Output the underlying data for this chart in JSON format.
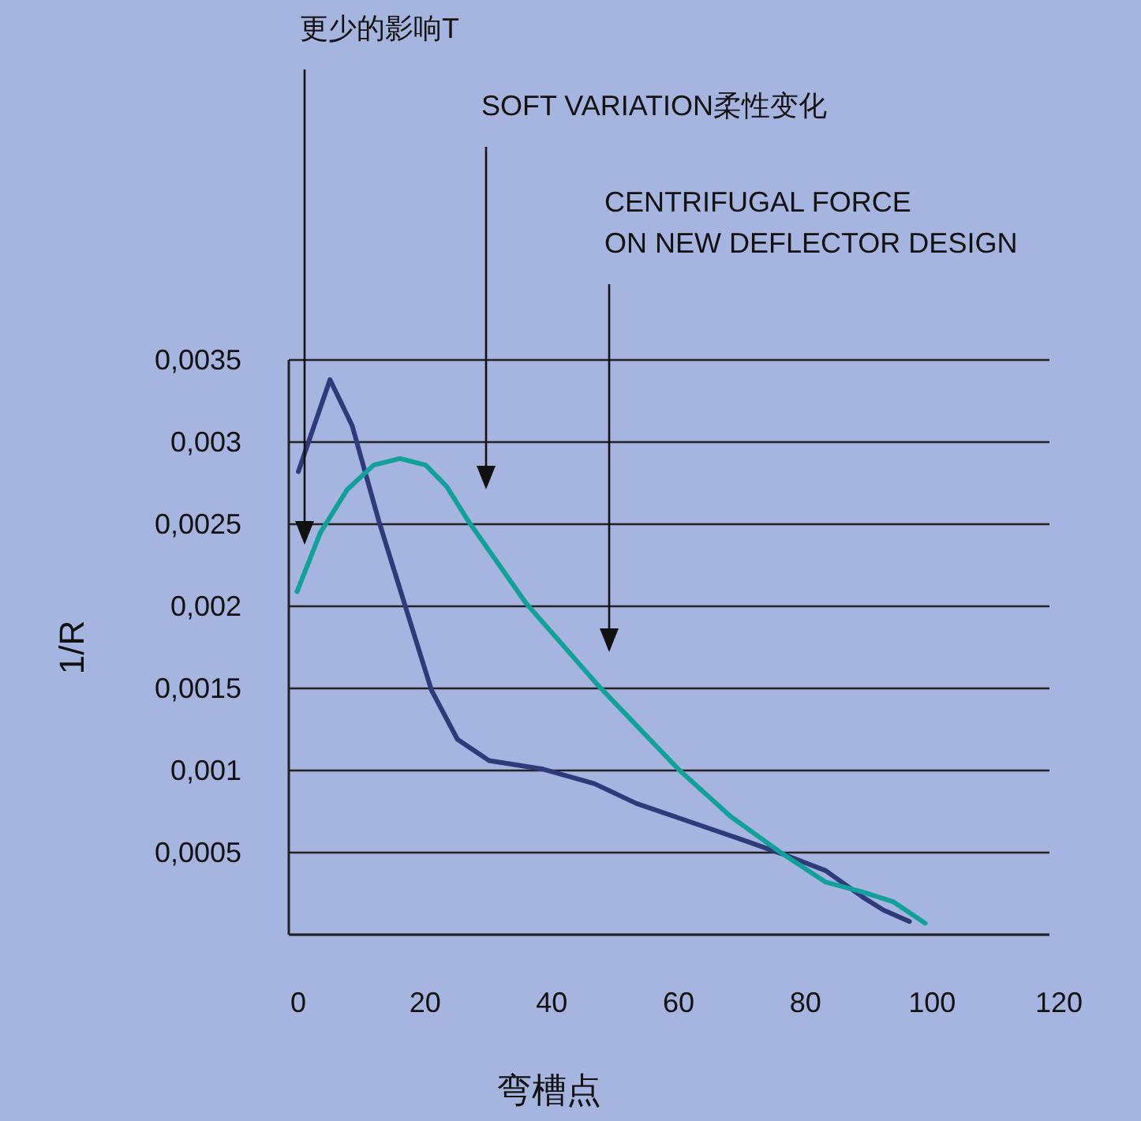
{
  "chart_data": {
    "type": "line",
    "xlabel": "弯槽点",
    "ylabel": "1/R",
    "xlim": [
      0,
      120
    ],
    "xticks": [
      0,
      20,
      40,
      60,
      80,
      100,
      120
    ],
    "ylim": [
      0,
      0.0035
    ],
    "yticks": [
      {
        "value": 0,
        "label": null
      },
      {
        "value": 0.0005,
        "label": "0,0005"
      },
      {
        "value": 0.001,
        "label": "0,001"
      },
      {
        "value": 0.0015,
        "label": "0,0015"
      },
      {
        "value": 0.002,
        "label": "0,002"
      },
      {
        "value": 0.0025,
        "label": "0,0025"
      },
      {
        "value": 0.003,
        "label": "0,003"
      },
      {
        "value": 0.0035,
        "label": "0,0035"
      }
    ],
    "grid": "y",
    "marker": "none",
    "line_style": "solid",
    "series": [
      {
        "color": "#2e3a7a",
        "x": [
          1.5,
          6.5,
          10.0,
          14.2,
          18.3,
          22.5,
          26.6,
          31.6,
          39.9,
          48.2,
          54.8,
          63.1,
          71.4,
          78.0,
          84.7,
          90.5,
          93.8,
          97.9
        ],
        "values": [
          0.00282,
          0.00338,
          0.0031,
          0.00252,
          0.00201,
          0.00149,
          0.00119,
          0.00106,
          0.00101,
          0.00092,
          0.0008,
          0.00069,
          0.00058,
          0.00049,
          0.00039,
          0.00023,
          0.00015,
          8e-05
        ]
      },
      {
        "color": "#13a09a",
        "x": [
          1.3,
          5.0,
          9.2,
          13.4,
          17.5,
          21.6,
          24.9,
          28.3,
          37.4,
          49.0,
          61.4,
          69.7,
          78.0,
          84.7,
          90.5,
          95.4,
          100.4
        ],
        "values": [
          0.00209,
          0.00245,
          0.00271,
          0.00286,
          0.0029,
          0.00286,
          0.00273,
          0.00252,
          0.00202,
          0.00151,
          0.00101,
          0.00072,
          0.00049,
          0.00032,
          0.00026,
          0.0002,
          7e-05
        ]
      }
    ],
    "annotations": [
      "更少的影响T",
      "SOFT VARIATION柔性变化",
      "CENTRIFUGAL FORCE\nON NEW DEFLECTOR DESIGN"
    ]
  }
}
